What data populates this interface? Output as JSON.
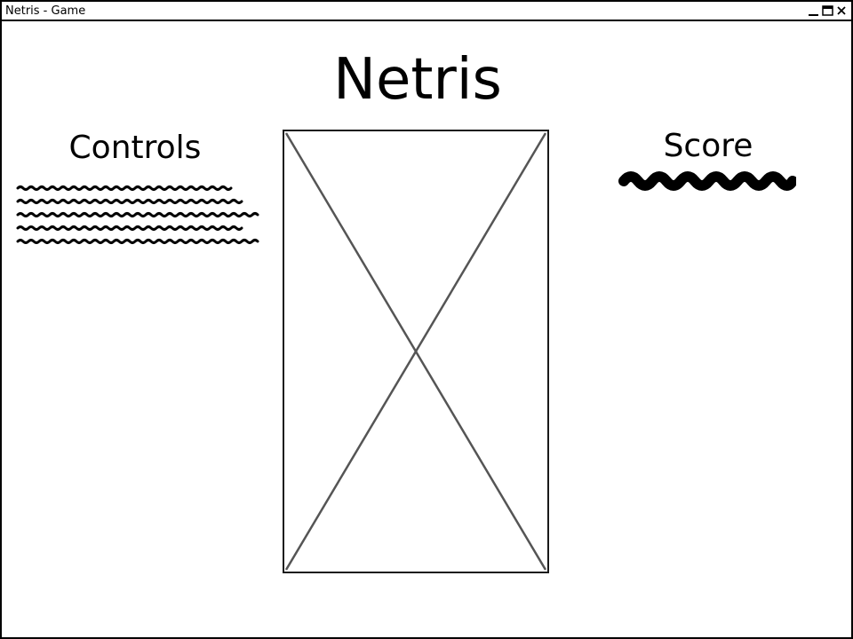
{
  "window": {
    "title": "Netris - Game",
    "controls": [
      "minimize-icon",
      "maximize-icon",
      "close-icon"
    ]
  },
  "app": {
    "title": "Netris"
  },
  "controls_panel": {
    "heading": "Controls"
  },
  "score_panel": {
    "heading": "Score"
  },
  "game_board": {
    "icon": "image-placeholder-icon"
  }
}
